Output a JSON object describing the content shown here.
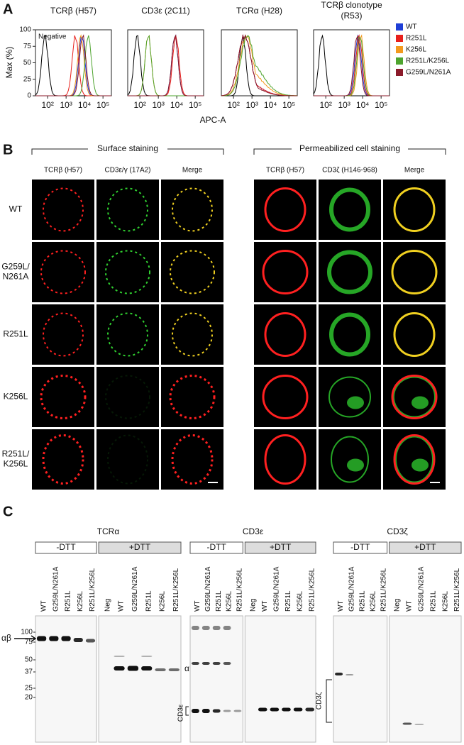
{
  "panel_a": {
    "label": "A",
    "y_label": "Max (%)",
    "x_label": "APC-A",
    "negative_label": "Negative",
    "plots": [
      {
        "title": [
          "TCRβ (H57)"
        ]
      },
      {
        "title": [
          "CD3ε (2C11)"
        ]
      },
      {
        "title": [
          "TCRα (H28)"
        ]
      },
      {
        "title": [
          "TCRβ clonotype",
          "(R53)"
        ]
      }
    ],
    "yticks": [
      0,
      25,
      50,
      75,
      100
    ],
    "xticks": [
      "10²",
      "10³",
      "10⁴",
      "10⁵"
    ],
    "legend": [
      {
        "name": "WT",
        "color": "#1f3fd6"
      },
      {
        "name": "R251L",
        "color": "#e8201c"
      },
      {
        "name": "K256L",
        "color": "#f39a1e"
      },
      {
        "name": "R251L/K256L",
        "color": "#4ea42e"
      },
      {
        "name": "G259L/N261A",
        "color": "#8b1a2a"
      }
    ]
  },
  "panel_b": {
    "label": "B",
    "groups": [
      {
        "title": "Surface staining",
        "columns": [
          "TCRβ (H57)",
          "CD3ε/γ (17A2)",
          "Merge"
        ]
      },
      {
        "title": "Permeabilized cell staining",
        "columns": [
          "TCRβ (H57)",
          "CD3ζ (H146-968)",
          "Merge"
        ]
      }
    ],
    "rows": [
      [
        "WT"
      ],
      [
        "G259L/",
        "N261A"
      ],
      [
        "R251L"
      ],
      [
        "K256L"
      ],
      [
        "R251L/",
        "K256L"
      ]
    ]
  },
  "panel_c": {
    "label": "C",
    "blots": [
      {
        "title": "TCRα",
        "conditions": [
          {
            "label": "-DTT",
            "lanes": [
              "WT",
              "G259L/N261A",
              "R251L",
              "K256L",
              "R251L/K256L"
            ]
          },
          {
            "label": "+DTT",
            "lanes": [
              "Neg",
              "WT",
              "G259L/N261A",
              "R251L",
              "K256L",
              "R251L/K256L"
            ]
          }
        ],
        "markers": [
          100,
          75,
          50,
          37,
          25,
          20
        ],
        "annotations": [
          "αβ",
          "α"
        ]
      },
      {
        "title": "CD3ε",
        "conditions": [
          {
            "label": "-DTT",
            "lanes": [
              "WT",
              "G259L/N261A",
              "R251L",
              "K256L",
              "R251L/K256L"
            ]
          },
          {
            "label": "+DTT",
            "lanes": [
              "Neg",
              "WT",
              "G259L/N261A",
              "R251L",
              "K256L",
              "R251L/K256L"
            ]
          }
        ],
        "annotations": [
          "CD3ε"
        ]
      },
      {
        "title": "CD3ζ",
        "conditions": [
          {
            "label": "-DTT",
            "lanes": [
              "WT",
              "G259L/N261A",
              "R251L",
              "K256L",
              "R251L/K256L"
            ]
          },
          {
            "label": "+DTT",
            "lanes": [
              "Neg",
              "WT",
              "G259L/N261A",
              "R251L",
              "K256L",
              "R251L/K256L"
            ]
          }
        ],
        "annotations": [
          "CD3ζ"
        ]
      }
    ]
  }
}
